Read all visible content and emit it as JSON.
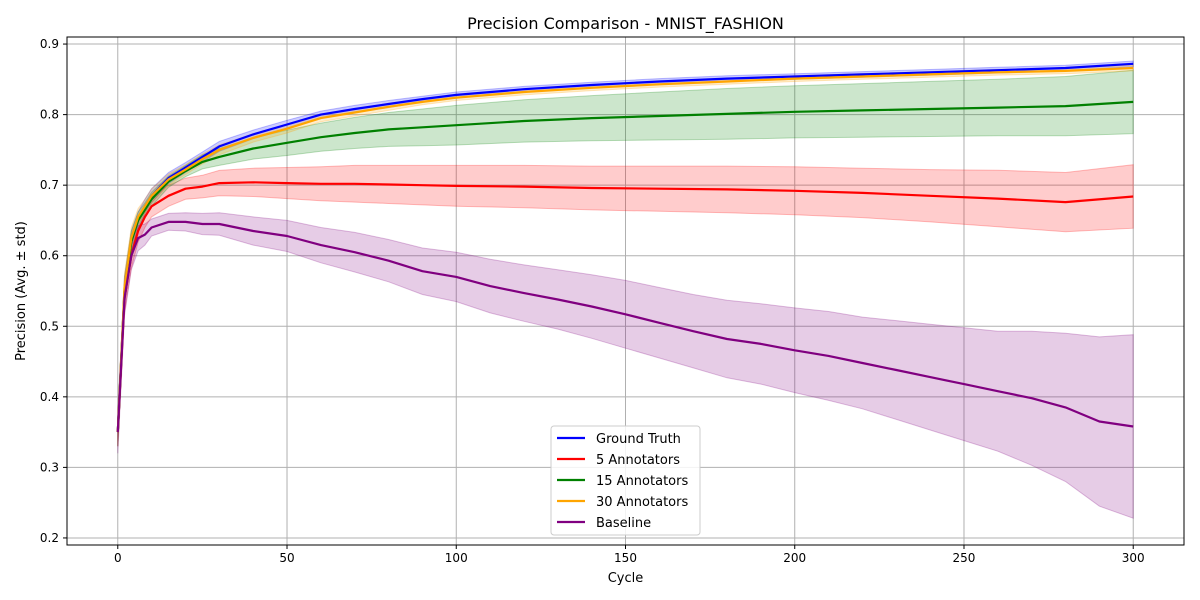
{
  "chart_data": {
    "type": "line",
    "title": "Precision Comparison - MNIST_FASHION",
    "xlabel": "Cycle",
    "ylabel": "Precision (Avg. ± std)",
    "xlim": [
      -15,
      315
    ],
    "ylim": [
      0.19,
      0.91
    ],
    "xticks": [
      0,
      50,
      100,
      150,
      200,
      250,
      300
    ],
    "yticks": [
      0.2,
      0.3,
      0.4,
      0.5,
      0.6,
      0.7,
      0.8,
      0.9
    ],
    "grid": true,
    "legend_position": "lower-center",
    "series": [
      {
        "name": "Ground Truth",
        "color": "#0000ff",
        "x": [
          0,
          2,
          4,
          6,
          8,
          10,
          15,
          20,
          25,
          30,
          40,
          50,
          60,
          70,
          80,
          90,
          100,
          120,
          140,
          160,
          180,
          200,
          220,
          240,
          260,
          280,
          300
        ],
        "mean": [
          0.35,
          0.55,
          0.62,
          0.65,
          0.67,
          0.685,
          0.71,
          0.725,
          0.74,
          0.755,
          0.772,
          0.786,
          0.8,
          0.808,
          0.815,
          0.822,
          0.828,
          0.836,
          0.842,
          0.847,
          0.851,
          0.854,
          0.857,
          0.86,
          0.863,
          0.866,
          0.872
        ],
        "std": [
          0.02,
          0.02,
          0.015,
          0.012,
          0.01,
          0.01,
          0.008,
          0.007,
          0.007,
          0.007,
          0.006,
          0.006,
          0.005,
          0.005,
          0.005,
          0.004,
          0.004,
          0.004,
          0.004,
          0.004,
          0.004,
          0.004,
          0.004,
          0.004,
          0.004,
          0.004,
          0.004
        ]
      },
      {
        "name": "5 Annotators",
        "color": "#ff0000",
        "x": [
          0,
          2,
          4,
          6,
          8,
          10,
          15,
          20,
          25,
          30,
          40,
          50,
          60,
          70,
          80,
          90,
          100,
          120,
          140,
          160,
          180,
          200,
          220,
          240,
          260,
          280,
          300
        ],
        "mean": [
          0.35,
          0.54,
          0.6,
          0.635,
          0.655,
          0.67,
          0.685,
          0.695,
          0.698,
          0.703,
          0.704,
          0.703,
          0.702,
          0.702,
          0.701,
          0.7,
          0.699,
          0.698,
          0.696,
          0.695,
          0.694,
          0.692,
          0.689,
          0.685,
          0.681,
          0.676,
          0.684
        ],
        "std": [
          0.02,
          0.02,
          0.018,
          0.016,
          0.015,
          0.015,
          0.015,
          0.015,
          0.016,
          0.018,
          0.02,
          0.022,
          0.024,
          0.026,
          0.027,
          0.028,
          0.029,
          0.03,
          0.031,
          0.032,
          0.033,
          0.034,
          0.035,
          0.037,
          0.04,
          0.042,
          0.045
        ]
      },
      {
        "name": "15 Annotators",
        "color": "#008000",
        "x": [
          0,
          2,
          4,
          6,
          8,
          10,
          15,
          20,
          25,
          30,
          40,
          50,
          60,
          70,
          80,
          90,
          100,
          120,
          140,
          160,
          180,
          200,
          220,
          240,
          260,
          280,
          300
        ],
        "mean": [
          0.35,
          0.55,
          0.62,
          0.65,
          0.665,
          0.68,
          0.705,
          0.72,
          0.733,
          0.74,
          0.752,
          0.76,
          0.768,
          0.774,
          0.779,
          0.782,
          0.785,
          0.791,
          0.795,
          0.798,
          0.801,
          0.804,
          0.806,
          0.808,
          0.81,
          0.812,
          0.818
        ],
        "std": [
          0.02,
          0.02,
          0.015,
          0.012,
          0.01,
          0.01,
          0.008,
          0.008,
          0.01,
          0.012,
          0.015,
          0.018,
          0.02,
          0.022,
          0.024,
          0.026,
          0.028,
          0.03,
          0.032,
          0.034,
          0.036,
          0.037,
          0.038,
          0.039,
          0.04,
          0.042,
          0.045
        ]
      },
      {
        "name": "30 Annotators",
        "color": "#ffa500",
        "x": [
          0,
          2,
          4,
          6,
          8,
          10,
          15,
          20,
          25,
          30,
          40,
          50,
          60,
          70,
          80,
          90,
          100,
          120,
          140,
          160,
          180,
          200,
          220,
          240,
          260,
          280,
          300
        ],
        "mean": [
          0.35,
          0.555,
          0.625,
          0.655,
          0.67,
          0.685,
          0.708,
          0.722,
          0.737,
          0.75,
          0.767,
          0.78,
          0.795,
          0.803,
          0.811,
          0.818,
          0.824,
          0.832,
          0.838,
          0.843,
          0.847,
          0.851,
          0.854,
          0.857,
          0.86,
          0.862,
          0.866
        ],
        "std": [
          0.02,
          0.02,
          0.015,
          0.012,
          0.01,
          0.01,
          0.008,
          0.007,
          0.007,
          0.007,
          0.006,
          0.006,
          0.005,
          0.005,
          0.005,
          0.004,
          0.004,
          0.004,
          0.004,
          0.004,
          0.004,
          0.004,
          0.004,
          0.004,
          0.004,
          0.004,
          0.004
        ]
      },
      {
        "name": "Baseline",
        "color": "#800080",
        "x": [
          0,
          2,
          4,
          6,
          8,
          10,
          15,
          20,
          25,
          30,
          40,
          50,
          60,
          70,
          80,
          90,
          100,
          110,
          120,
          130,
          140,
          150,
          160,
          170,
          180,
          190,
          200,
          210,
          220,
          230,
          240,
          250,
          260,
          270,
          280,
          290,
          300
        ],
        "mean": [
          0.35,
          0.54,
          0.6,
          0.625,
          0.63,
          0.64,
          0.648,
          0.648,
          0.645,
          0.645,
          0.635,
          0.628,
          0.615,
          0.605,
          0.593,
          0.578,
          0.57,
          0.557,
          0.547,
          0.538,
          0.528,
          0.517,
          0.505,
          0.493,
          0.482,
          0.475,
          0.466,
          0.458,
          0.448,
          0.438,
          0.428,
          0.418,
          0.408,
          0.398,
          0.385,
          0.365,
          0.358
        ],
        "std": [
          0.03,
          0.025,
          0.02,
          0.018,
          0.015,
          0.012,
          0.012,
          0.013,
          0.015,
          0.016,
          0.02,
          0.022,
          0.025,
          0.028,
          0.03,
          0.033,
          0.035,
          0.038,
          0.04,
          0.042,
          0.045,
          0.048,
          0.05,
          0.052,
          0.055,
          0.057,
          0.06,
          0.063,
          0.065,
          0.07,
          0.075,
          0.08,
          0.085,
          0.095,
          0.105,
          0.12,
          0.13
        ]
      }
    ]
  }
}
